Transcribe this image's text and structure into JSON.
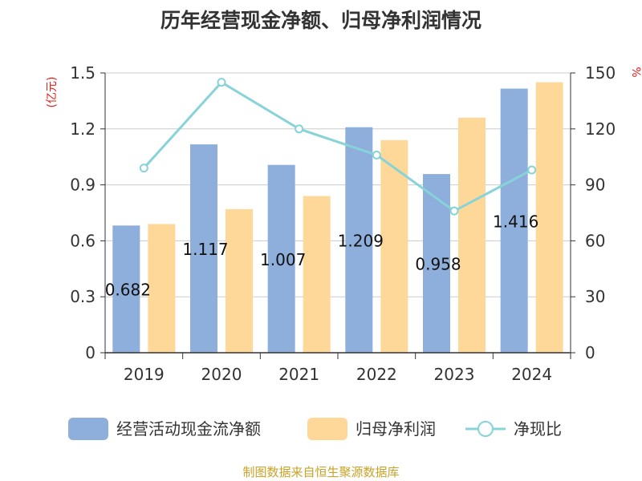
{
  "title": "历年经营现金净额、归母净利润情况",
  "source": "制图数据来自恒生聚源数据库",
  "chart_data": {
    "type": "bar",
    "categories": [
      "2019",
      "2020",
      "2021",
      "2022",
      "2023",
      "2024"
    ],
    "series": [
      {
        "name": "经营活动现金流净额",
        "kind": "bar",
        "axis": "left",
        "color": "#8eaedb",
        "values": [
          0.682,
          1.117,
          1.007,
          1.209,
          0.958,
          1.416
        ],
        "labels": [
          "0.682",
          "1.117",
          "1.007",
          "1.209",
          "0.958",
          "1.416"
        ]
      },
      {
        "name": "归母净利润",
        "kind": "bar",
        "axis": "left",
        "color": "#fdd898",
        "values": [
          0.69,
          0.77,
          0.84,
          1.14,
          1.26,
          1.45
        ]
      },
      {
        "name": "净现比",
        "kind": "line",
        "axis": "right",
        "color": "#86d3d8",
        "values": [
          99,
          145,
          120,
          106,
          76,
          98
        ]
      }
    ],
    "yleft": {
      "unit": "(亿元)",
      "ticks": [
        "0",
        "0.3",
        "0.6",
        "0.9",
        "1.2",
        "1.5"
      ],
      "lim": [
        0,
        1.5
      ]
    },
    "yright": {
      "unit": "%",
      "ticks": [
        "0",
        "30",
        "60",
        "90",
        "120",
        "150"
      ],
      "lim": [
        0,
        150
      ]
    },
    "grid": true,
    "legend": "bottom"
  }
}
